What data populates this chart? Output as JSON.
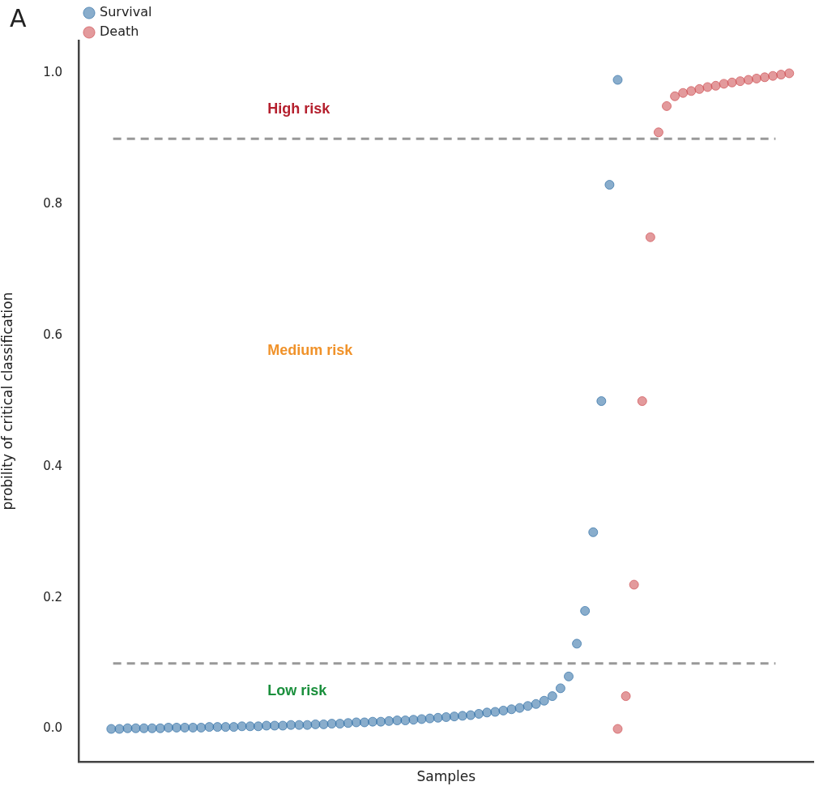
{
  "chart_data": {
    "type": "scatter",
    "xlabel": "Samples",
    "ylabel": "probility of critical classification",
    "categories": [
      null,
      null,
      null,
      null,
      null,
      null,
      null,
      null,
      null,
      null,
      null,
      null,
      null,
      null,
      null,
      null,
      null,
      null,
      null,
      null,
      null,
      null,
      null,
      null,
      null,
      null,
      null,
      null,
      null,
      null,
      null,
      null,
      null,
      null,
      null,
      null,
      null,
      null,
      null,
      null,
      null,
      null,
      null,
      null,
      null,
      null,
      null,
      null,
      null,
      null,
      null,
      null,
      null,
      null,
      null,
      null,
      null,
      null,
      null,
      null,
      null,
      null,
      null,
      null,
      null,
      null,
      null,
      null,
      null,
      null,
      null,
      null,
      null,
      null,
      null,
      null,
      null,
      null,
      null,
      null,
      null,
      null,
      null,
      null,
      null,
      null,
      null,
      null,
      null,
      null,
      null
    ],
    "series": [
      {
        "name": "Survival",
        "color": "#3a76aa",
        "values": [
          null,
          null,
          null,
          null,
          0.0,
          0.0,
          0.001,
          0.001,
          0.001,
          0.001,
          0.001,
          0.002,
          0.002,
          0.002,
          0.002,
          0.002,
          0.003,
          0.003,
          0.003,
          0.003,
          0.004,
          0.004,
          0.004,
          0.005,
          0.005,
          0.005,
          0.006,
          0.006,
          0.006,
          0.007,
          0.007,
          0.008,
          0.008,
          0.009,
          0.01,
          0.01,
          0.011,
          0.011,
          0.012,
          0.013,
          0.013,
          0.014,
          0.015,
          0.016,
          0.017,
          0.018,
          0.019,
          0.02,
          0.021,
          0.023,
          0.025,
          0.026,
          0.028,
          0.03,
          0.032,
          0.035,
          0.038,
          0.043,
          0.05,
          0.062,
          0.08,
          0.13,
          0.18,
          0.3,
          0.5,
          0.83,
          0.99,
          null,
          null,
          null,
          null,
          null,
          null,
          null,
          null,
          null,
          null,
          null,
          null,
          null,
          null,
          null,
          null,
          null,
          null,
          null,
          null,
          null,
          null,
          null,
          null
        ]
      },
      {
        "name": "Death",
        "color": "#d0565a",
        "values": [
          null,
          null,
          null,
          null,
          null,
          null,
          null,
          null,
          null,
          null,
          null,
          null,
          null,
          null,
          null,
          null,
          null,
          null,
          null,
          null,
          null,
          null,
          null,
          null,
          null,
          null,
          null,
          null,
          null,
          null,
          null,
          null,
          null,
          null,
          null,
          null,
          null,
          null,
          null,
          null,
          null,
          null,
          null,
          null,
          null,
          null,
          null,
          null,
          null,
          null,
          null,
          null,
          null,
          null,
          null,
          null,
          null,
          null,
          null,
          null,
          null,
          null,
          null,
          null,
          null,
          null,
          0.0,
          0.05,
          0.22,
          0.5,
          0.75,
          0.91,
          0.95,
          0.965,
          0.97,
          0.973,
          0.976,
          0.979,
          0.981,
          0.984,
          0.986,
          0.988,
          0.99,
          0.992,
          0.994,
          0.996,
          0.998,
          1.0,
          null,
          null,
          null
        ]
      }
    ],
    "ylim": [
      -0.05,
      1.05
    ],
    "yticks": [
      {
        "value": 0,
        "label": "0.0"
      },
      {
        "value": 0.2,
        "label": "0.2"
      },
      {
        "value": 0.4,
        "label": "0.4"
      },
      {
        "value": 0.6,
        "label": "0.6"
      },
      {
        "value": 0.8,
        "label": "0.8"
      },
      {
        "value": 1,
        "label": "1.0"
      }
    ],
    "ref_lines": [
      {
        "axis": "y",
        "value": 0.9,
        "color": "#999999",
        "line_style": "dashed"
      },
      {
        "axis": "y",
        "value": 0.1,
        "color": "#999999",
        "line_style": "dashed"
      }
    ],
    "annotations": [
      "A",
      "High risk",
      "Medium risk",
      "Low risk"
    ],
    "grid": false,
    "legend": "top left",
    "marker": "circle",
    "tick_labels": "y"
  }
}
